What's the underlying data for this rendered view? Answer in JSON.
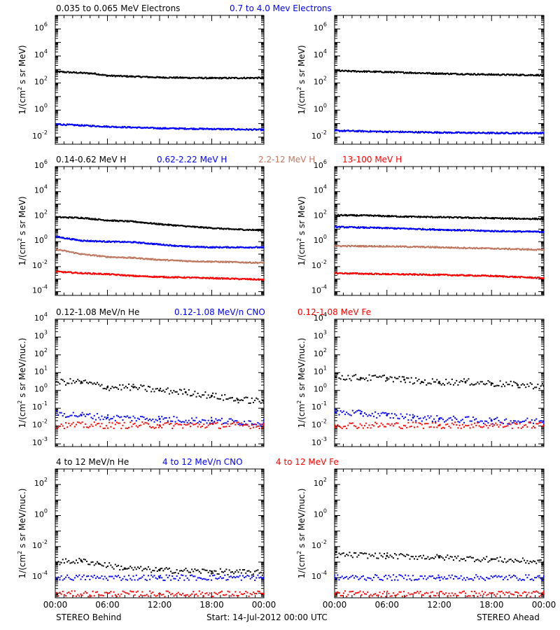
{
  "colors": {
    "black": "#000000",
    "blue": "#0000ff",
    "tan": "#c07860",
    "red": "#ff0000"
  },
  "footer": {
    "left": "STEREO Behind",
    "center": "Start: 14-Jul-2012 00:00 UTC",
    "right": "STEREO Ahead"
  },
  "x_tick_labels": [
    "00:00",
    "06:00",
    "12:00",
    "18:00",
    "00:00"
  ],
  "rows": [
    {
      "titles": [
        {
          "text": "0.035 to 0.065 MeV Electrons",
          "color": "#000000"
        },
        {
          "text": "0.7 to 4.0 Mev Electrons",
          "color": "#0000ff"
        }
      ]
    },
    {
      "titles": [
        {
          "text": "0.14-0.62 MeV H",
          "color": "#000000"
        },
        {
          "text": "0.62-2.22 MeV H",
          "color": "#0000ff"
        },
        {
          "text": "2.2-12 MeV H",
          "color": "#c07860"
        },
        {
          "text": "13-100 MeV H",
          "color": "#ff0000"
        }
      ]
    },
    {
      "titles": [
        {
          "text": "0.12-1.08 MeV/n He",
          "color": "#000000"
        },
        {
          "text": "0.12-1.08 MeV/n CNO",
          "color": "#0000ff"
        },
        {
          "text": "0.12-1.08 MeV Fe",
          "color": "#ff0000"
        }
      ]
    },
    {
      "titles": [
        {
          "text": "4 to 12 MeV/n He",
          "color": "#000000"
        },
        {
          "text": "4 to 12 MeV/n CNO",
          "color": "#0000ff"
        },
        {
          "text": "4 to 12 MeV Fe",
          "color": "#ff0000"
        }
      ]
    }
  ],
  "chart_data": [
    {
      "id": "behind-electrons",
      "type": "scatter",
      "side": "STEREO Behind",
      "ylog": true,
      "ylim": [
        0.003,
        10000000
      ],
      "ylabel_parts": [
        "1/(cm",
        "2",
        " s sr MeV)"
      ],
      "y_tick_exponents": [
        -2,
        0,
        2,
        4,
        6
      ],
      "x_hours": [
        0,
        24
      ],
      "series": [
        {
          "color": "#000000",
          "points": [
            [
              0,
              700
            ],
            [
              4.5,
              500
            ],
            [
              6,
              350
            ],
            [
              12,
              260
            ],
            [
              18,
              230
            ],
            [
              24,
              240
            ]
          ]
        },
        {
          "color": "#0000ff",
          "points": [
            [
              0,
              0.09
            ],
            [
              6,
              0.06
            ],
            [
              12,
              0.045
            ],
            [
              18,
              0.04
            ],
            [
              24,
              0.035
            ]
          ]
        }
      ]
    },
    {
      "id": "ahead-electrons",
      "type": "scatter",
      "side": "STEREO Ahead",
      "ylog": true,
      "ylim": [
        0.003,
        10000000
      ],
      "ylabel_parts": [
        "1/(cm",
        "2",
        " s sr MeV)"
      ],
      "y_tick_exponents": [
        -2,
        0,
        2,
        4,
        6
      ],
      "x_hours": [
        0,
        24
      ],
      "series": [
        {
          "color": "#000000",
          "points": [
            [
              0,
              800
            ],
            [
              6,
              650
            ],
            [
              12,
              500
            ],
            [
              18,
              420
            ],
            [
              24,
              380
            ]
          ]
        },
        {
          "color": "#0000ff",
          "points": [
            [
              0,
              0.03
            ],
            [
              6,
              0.025
            ],
            [
              12,
              0.022
            ],
            [
              18,
              0.02
            ],
            [
              24,
              0.02
            ]
          ]
        }
      ]
    },
    {
      "id": "behind-protons",
      "type": "scatter",
      "side": "STEREO Behind",
      "ylog": true,
      "ylim": [
        5e-05,
        1000000
      ],
      "ylabel_parts": [
        "1/(cm",
        "2",
        " s sr MeV)"
      ],
      "y_tick_exponents": [
        -4,
        -2,
        0,
        2,
        4,
        6
      ],
      "x_hours": [
        0,
        24
      ],
      "series": [
        {
          "color": "#000000",
          "points": [
            [
              0,
              90
            ],
            [
              3,
              80
            ],
            [
              6,
              50
            ],
            [
              9,
              40
            ],
            [
              12,
              25
            ],
            [
              16,
              15
            ],
            [
              20,
              10
            ],
            [
              24,
              8
            ]
          ]
        },
        {
          "color": "#0000ff",
          "points": [
            [
              0,
              2.5
            ],
            [
              3,
              1.2
            ],
            [
              6,
              1
            ],
            [
              9,
              0.9
            ],
            [
              12,
              0.6
            ],
            [
              15,
              0.4
            ],
            [
              18,
              0.35
            ],
            [
              24,
              0.35
            ]
          ]
        },
        {
          "color": "#c07860",
          "points": [
            [
              0,
              0.25
            ],
            [
              3,
              0.1
            ],
            [
              6,
              0.06
            ],
            [
              9,
              0.05
            ],
            [
              12,
              0.035
            ],
            [
              15,
              0.028
            ],
            [
              18,
              0.025
            ],
            [
              24,
              0.02
            ]
          ]
        },
        {
          "color": "#ff0000",
          "points": [
            [
              0,
              0.004
            ],
            [
              3,
              0.003
            ],
            [
              6,
              0.0025
            ],
            [
              9,
              0.0018
            ],
            [
              12,
              0.0015
            ],
            [
              18,
              0.0012
            ],
            [
              24,
              0.0009
            ]
          ]
        }
      ]
    },
    {
      "id": "ahead-protons",
      "type": "scatter",
      "side": "STEREO Ahead",
      "ylog": true,
      "ylim": [
        5e-05,
        1000000
      ],
      "ylabel_parts": [
        "1/(cm",
        "2",
        " s sr MeV)"
      ],
      "y_tick_exponents": [
        -4,
        -2,
        0,
        2,
        4,
        6
      ],
      "x_hours": [
        0,
        24
      ],
      "series": [
        {
          "color": "#000000",
          "points": [
            [
              0,
              130
            ],
            [
              4,
              120
            ],
            [
              8,
              100
            ],
            [
              12,
              90
            ],
            [
              16,
              80
            ],
            [
              20,
              70
            ],
            [
              24,
              65
            ]
          ]
        },
        {
          "color": "#0000ff",
          "points": [
            [
              0,
              15
            ],
            [
              6,
              12
            ],
            [
              12,
              9
            ],
            [
              18,
              7
            ],
            [
              24,
              6
            ]
          ]
        },
        {
          "color": "#c07860",
          "points": [
            [
              0,
              0.45
            ],
            [
              6,
              0.42
            ],
            [
              12,
              0.35
            ],
            [
              18,
              0.28
            ],
            [
              24,
              0.22
            ]
          ]
        },
        {
          "color": "#ff0000",
          "points": [
            [
              0,
              0.003
            ],
            [
              6,
              0.0025
            ],
            [
              12,
              0.0022
            ],
            [
              18,
              0.0018
            ],
            [
              24,
              0.0012
            ]
          ]
        }
      ]
    },
    {
      "id": "behind-suprathermal-ions",
      "type": "scatter",
      "side": "STEREO Behind",
      "ylog": true,
      "ylim": [
        0.0007,
        10000
      ],
      "ylabel_parts": [
        "1/(cm",
        "2",
        " s sr MeV/nuc.)"
      ],
      "y_tick_exponents": [
        -3,
        -2,
        -1,
        0,
        1,
        2,
        3,
        4
      ],
      "x_hours": [
        0,
        24
      ],
      "series": [
        {
          "color": "#000000",
          "points": [
            [
              0,
              3
            ],
            [
              3,
              3
            ],
            [
              6,
              1.5
            ],
            [
              9,
              1.5
            ],
            [
              12,
              1
            ],
            [
              15,
              0.8
            ],
            [
              18,
              0.5
            ],
            [
              21,
              0.3
            ],
            [
              24,
              0.25
            ]
          ]
        },
        {
          "color": "#0000ff",
          "points": [
            [
              0,
              0.05
            ],
            [
              3,
              0.04
            ],
            [
              6,
              0.03
            ],
            [
              12,
              0.025
            ],
            [
              18,
              0.02
            ],
            [
              24,
              0.015
            ]
          ]
        },
        {
          "color": "#ff0000",
          "points": [
            [
              0,
              0.011
            ],
            [
              12,
              0.011
            ],
            [
              24,
              0.011
            ]
          ]
        }
      ]
    },
    {
      "id": "ahead-suprathermal-ions",
      "type": "scatter",
      "side": "STEREO Ahead",
      "ylog": true,
      "ylim": [
        0.0007,
        10000
      ],
      "ylabel_parts": [
        "1/(cm",
        "2",
        " s sr MeV/nuc.)"
      ],
      "y_tick_exponents": [
        -3,
        -2,
        -1,
        0,
        1,
        2,
        3,
        4
      ],
      "x_hours": [
        0,
        24
      ],
      "series": [
        {
          "color": "#000000",
          "points": [
            [
              0,
              6
            ],
            [
              3,
              5
            ],
            [
              6,
              5
            ],
            [
              8,
              4
            ],
            [
              10,
              3
            ],
            [
              12,
              3
            ],
            [
              15,
              3
            ],
            [
              18,
              2.5
            ],
            [
              21,
              2
            ],
            [
              24,
              1.8
            ]
          ]
        },
        {
          "color": "#0000ff",
          "points": [
            [
              0,
              0.06
            ],
            [
              3,
              0.05
            ],
            [
              6,
              0.04
            ],
            [
              9,
              0.03
            ],
            [
              12,
              0.025
            ],
            [
              18,
              0.02
            ],
            [
              24,
              0.018
            ]
          ]
        },
        {
          "color": "#ff0000",
          "points": [
            [
              0,
              0.011
            ],
            [
              12,
              0.011
            ],
            [
              24,
              0.011
            ]
          ]
        }
      ]
    },
    {
      "id": "behind-energetic-ions",
      "type": "scatter",
      "side": "STEREO Behind",
      "ylog": true,
      "ylim": [
        5e-06,
        1000
      ],
      "ylabel_parts": [
        "1/(cm",
        "2",
        " s sr MeV/nuc.)"
      ],
      "y_tick_exponents": [
        -4,
        -2,
        0,
        2
      ],
      "x_hours": [
        0,
        24
      ],
      "series": [
        {
          "color": "#000000",
          "points": [
            [
              0,
              0.001
            ],
            [
              3,
              0.0012
            ],
            [
              5,
              0.0008
            ],
            [
              8,
              0.0004
            ],
            [
              12,
              0.0003
            ],
            [
              18,
              0.00025
            ],
            [
              24,
              0.0002
            ]
          ]
        },
        {
          "color": "#0000ff",
          "points": [
            [
              0,
              0.0001
            ],
            [
              12,
              0.0001
            ],
            [
              24,
              0.0001
            ]
          ]
        },
        {
          "color": "#ff0000",
          "points": [
            [
              0,
              9e-06
            ],
            [
              24,
              9e-06
            ]
          ]
        }
      ]
    },
    {
      "id": "ahead-energetic-ions",
      "type": "scatter",
      "side": "STEREO Ahead",
      "ylog": true,
      "ylim": [
        5e-06,
        1000
      ],
      "ylabel_parts": [
        "1/(cm",
        "2",
        " s sr MeV/nuc.)"
      ],
      "y_tick_exponents": [
        -4,
        -2,
        0,
        2
      ],
      "x_hours": [
        0,
        24
      ],
      "series": [
        {
          "color": "#000000",
          "points": [
            [
              0,
              0.003
            ],
            [
              6,
              0.0025
            ],
            [
              12,
              0.002
            ],
            [
              18,
              0.0015
            ],
            [
              24,
              0.001
            ]
          ]
        },
        {
          "color": "#0000ff",
          "points": [
            [
              0,
              0.0001
            ],
            [
              12,
              0.0001
            ],
            [
              24,
              0.0001
            ]
          ]
        },
        {
          "color": "#ff0000",
          "points": [
            [
              0,
              9e-06
            ],
            [
              24,
              9e-06
            ]
          ]
        }
      ]
    }
  ]
}
